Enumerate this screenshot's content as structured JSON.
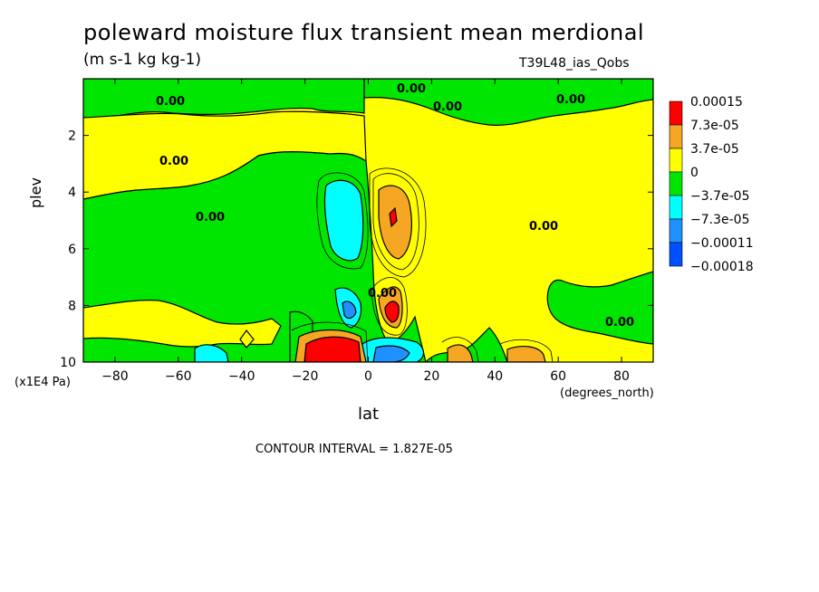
{
  "chart_data": {
    "type": "contour",
    "title": "poleward moisture flux transient mean merdional",
    "units": "(m s-1 kg kg-1)",
    "dataset": "T39L48_ias_Qobs",
    "xlabel": "lat",
    "xunit": "(degrees_north)",
    "ylabel": "plev",
    "yunit": "(x1E4 Pa)",
    "xlim": [
      -90,
      90
    ],
    "ylim": [
      10,
      0
    ],
    "x_ticks": [
      -80,
      -60,
      -40,
      -20,
      0,
      20,
      40,
      60,
      80
    ],
    "y_ticks": [
      2,
      4,
      6,
      8,
      10
    ],
    "contour_interval_label": "CONTOUR INTERVAL = 1.827E-05",
    "contour_labels": [
      "0.00"
    ],
    "legend": [
      {
        "label": "0.00015",
        "color": "#ff0000"
      },
      {
        "label": "7.3e-05",
        "color": "#f5a623"
      },
      {
        "label": "3.7e-05",
        "color": "#ffff00"
      },
      {
        "label": "0",
        "color": "#00e600"
      },
      {
        "label": "−3.7e-05",
        "color": "#00ffff"
      },
      {
        "label": "−7.3e-05",
        "color": "#1e90ff"
      },
      {
        "label": "−0.00011",
        "color": "#0050ff"
      },
      {
        "label": "−0.00018",
        "color": null
      }
    ],
    "background_color": "#ffff00",
    "features": [
      {
        "lat": 8,
        "plev": 5.0,
        "sign": "positive"
      },
      {
        "lat": -8,
        "plev": 4.7,
        "sign": "negative"
      },
      {
        "lat": -12,
        "plev": 9.5,
        "sign": "positive"
      },
      {
        "lat": 8,
        "plev": 8.3,
        "sign": "positive"
      },
      {
        "lat": 10,
        "plev": 9.7,
        "sign": "negative"
      },
      {
        "lat": -8,
        "plev": 8.2,
        "sign": "negative"
      },
      {
        "lat": 30,
        "plev": 9.7,
        "sign": "positive"
      },
      {
        "lat": 50,
        "plev": 9.8,
        "sign": "positive"
      }
    ]
  }
}
